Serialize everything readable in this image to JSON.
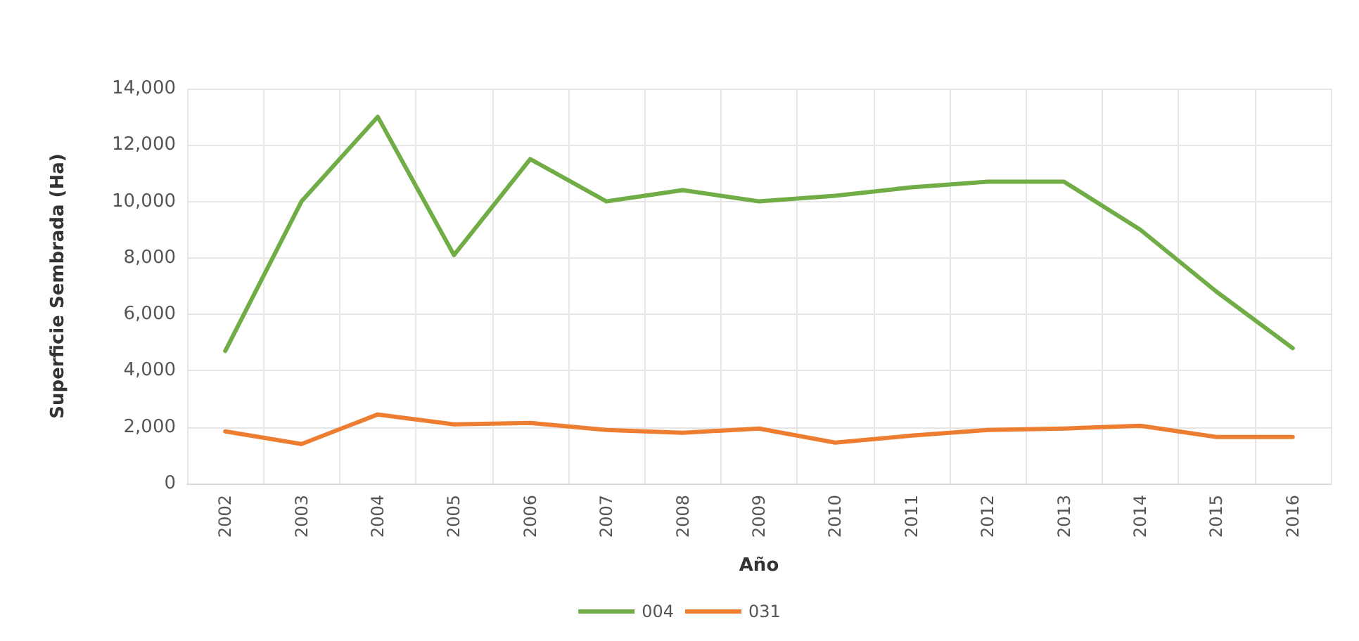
{
  "chart_data": {
    "type": "line",
    "xlabel": "Año",
    "ylabel": "Superficie Sembrada (Ha)",
    "categories": [
      "2002",
      "2003",
      "2004",
      "2005",
      "2006",
      "2007",
      "2008",
      "2009",
      "2010",
      "2011",
      "2012",
      "2013",
      "2014",
      "2015",
      "2016"
    ],
    "series": [
      {
        "name": "004",
        "color": "#70ad47",
        "values": [
          4700,
          10000,
          13000,
          8100,
          11500,
          10000,
          10400,
          10000,
          10200,
          10500,
          10700,
          10700,
          9000,
          6800,
          4800
        ]
      },
      {
        "name": "031",
        "color": "#ed7d31",
        "values": [
          1850,
          1400,
          2450,
          2100,
          2150,
          1900,
          1800,
          1950,
          1450,
          1700,
          1900,
          1950,
          2050,
          1650,
          1650
        ]
      }
    ],
    "ylim": [
      0,
      14000
    ],
    "yticks": [
      {
        "value": 0,
        "label": "0"
      },
      {
        "value": 2000,
        "label": "2,000"
      },
      {
        "value": 4000,
        "label": "4,000"
      },
      {
        "value": 6000,
        "label": "6,000"
      },
      {
        "value": 8000,
        "label": "8,000"
      },
      {
        "value": 10000,
        "label": "10,000"
      },
      {
        "value": 12000,
        "label": "12,000"
      },
      {
        "value": 14000,
        "label": "14,000"
      }
    ],
    "grid": true,
    "legend": "bottom",
    "marker": "none",
    "line_style": "solid"
  }
}
